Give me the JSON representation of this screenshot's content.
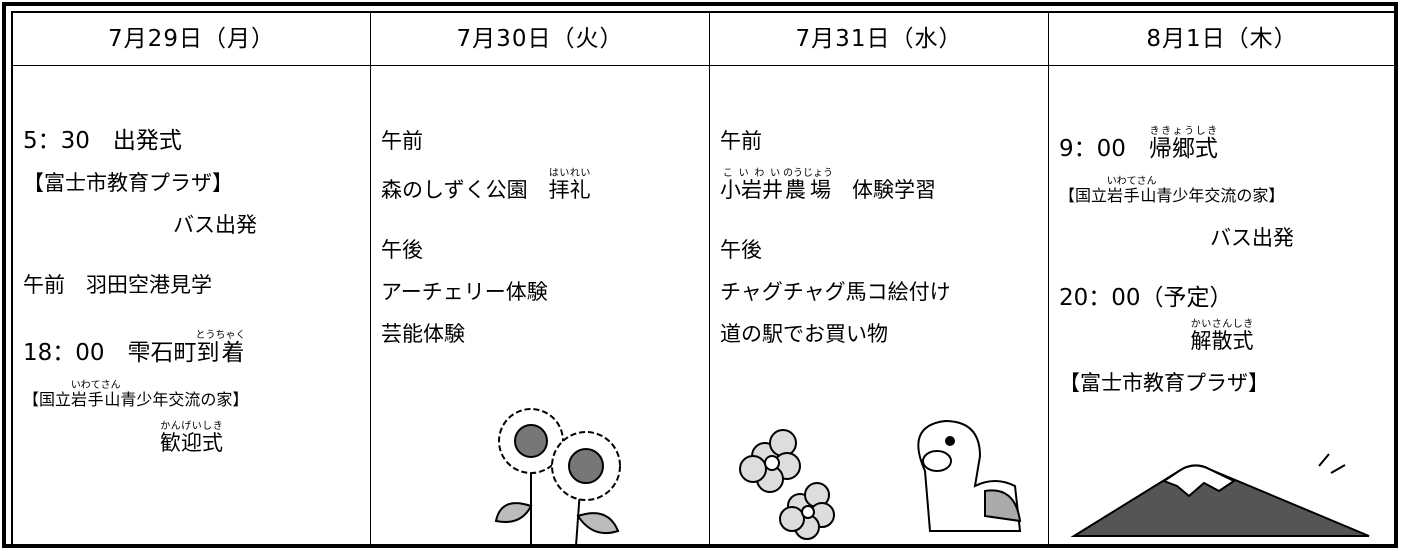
{
  "columns": [
    {
      "header": "7月29日（月）",
      "lines": [
        {
          "segments": [
            {
              "text": "5：30　出発式"
            }
          ]
        },
        {
          "segments": [
            {
              "text": "【富士市教育プラザ】"
            }
          ]
        },
        {
          "segments": [
            {
              "text": "バス出発"
            }
          ]
        },
        {
          "segments": [
            {
              "text": "午前　羽田空港見学"
            }
          ]
        },
        {
          "segments": [
            {
              "text": "18：00　雫石町"
            },
            {
              "text": "到着",
              "ruby": "とうちゃく"
            }
          ]
        },
        {
          "segments": [
            {
              "text": "【国立"
            },
            {
              "text": "岩手山",
              "ruby": "いわてさん"
            },
            {
              "text": "青少年交流の家】"
            }
          ]
        },
        {
          "segments": [
            {
              "text": "歓迎式",
              "ruby": "かんげいしき"
            }
          ]
        }
      ]
    },
    {
      "header": "7月30日（火）",
      "lines": [
        {
          "segments": [
            {
              "text": "午前"
            }
          ]
        },
        {
          "segments": [
            {
              "text": "森のしずく公園　"
            },
            {
              "text": "拝礼",
              "ruby": "はいれい"
            }
          ]
        },
        {
          "segments": [
            {
              "text": "午後"
            }
          ]
        },
        {
          "segments": [
            {
              "text": "アーチェリー体験"
            }
          ]
        },
        {
          "segments": [
            {
              "text": "芸能体験"
            }
          ]
        }
      ]
    },
    {
      "header": "7月31日（水）",
      "lines": [
        {
          "segments": [
            {
              "text": "午前"
            }
          ]
        },
        {
          "segments": [
            {
              "text": "小岩井",
              "ruby": "こいわい"
            },
            {
              "text": "農場",
              "ruby": "のうじょう"
            },
            {
              "text": "　体験学習"
            }
          ]
        },
        {
          "segments": [
            {
              "text": "午後"
            }
          ]
        },
        {
          "segments": [
            {
              "text": "チャグチャグ馬コ絵付け"
            }
          ]
        },
        {
          "segments": [
            {
              "text": "道の駅でお買い物"
            }
          ]
        }
      ]
    },
    {
      "header": "8月1日（木）",
      "lines": [
        {
          "segments": [
            {
              "text": "9：00　"
            },
            {
              "text": "帰郷式",
              "ruby": "ききょうしき"
            }
          ]
        },
        {
          "segments": [
            {
              "text": "【国立"
            },
            {
              "text": "岩手山",
              "ruby": "いわてさん"
            },
            {
              "text": "青少年交流の家】"
            }
          ]
        },
        {
          "segments": [
            {
              "text": "バス出発"
            }
          ]
        },
        {
          "segments": [
            {
              "text": "20：00（予定）"
            }
          ]
        },
        {
          "segments": [
            {
              "text": "解散式",
              "ruby": "かいさんしき"
            }
          ]
        },
        {
          "segments": [
            {
              "text": "【富士市教育プラザ】"
            }
          ]
        }
      ]
    }
  ]
}
